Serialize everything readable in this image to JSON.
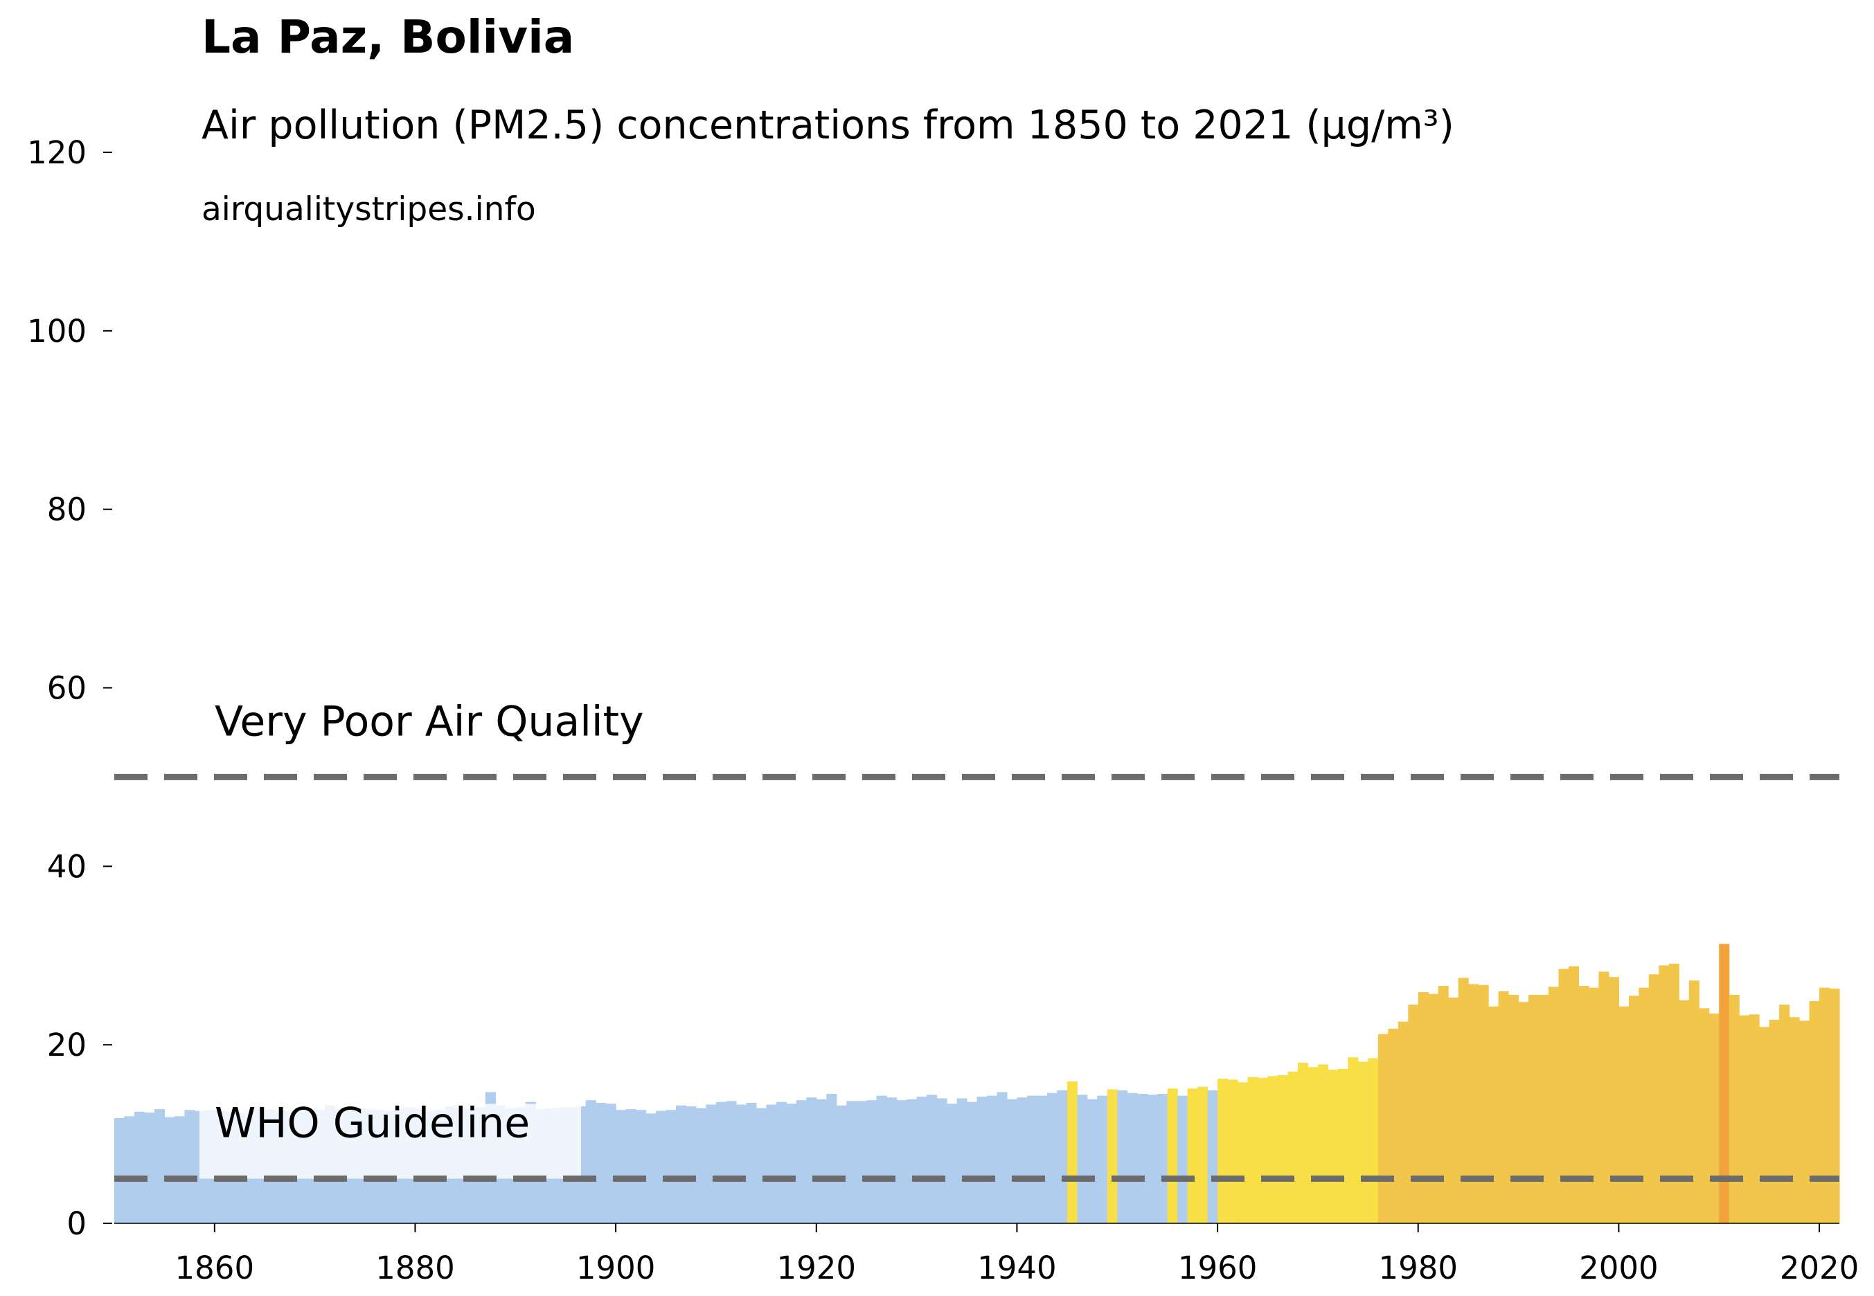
{
  "chart_data": {
    "type": "bar",
    "title": "La Paz, Bolivia",
    "subtitle": "Air pollution (PM2.5) concentrations from 1850 to 2021 (µg/m³)",
    "source": "airqualitystripes.info",
    "x": [
      1850,
      1851,
      1852,
      1853,
      1854,
      1855,
      1856,
      1857,
      1858,
      1859,
      1860,
      1861,
      1862,
      1863,
      1864,
      1865,
      1866,
      1867,
      1868,
      1869,
      1870,
      1871,
      1872,
      1873,
      1874,
      1875,
      1876,
      1877,
      1878,
      1879,
      1880,
      1881,
      1882,
      1883,
      1884,
      1885,
      1886,
      1887,
      1888,
      1889,
      1890,
      1891,
      1892,
      1893,
      1894,
      1895,
      1896,
      1897,
      1898,
      1899,
      1900,
      1901,
      1902,
      1903,
      1904,
      1905,
      1906,
      1907,
      1908,
      1909,
      1910,
      1911,
      1912,
      1913,
      1914,
      1915,
      1916,
      1917,
      1918,
      1919,
      1920,
      1921,
      1922,
      1923,
      1924,
      1925,
      1926,
      1927,
      1928,
      1929,
      1930,
      1931,
      1932,
      1933,
      1934,
      1935,
      1936,
      1937,
      1938,
      1939,
      1940,
      1941,
      1942,
      1943,
      1944,
      1945,
      1946,
      1947,
      1948,
      1949,
      1950,
      1951,
      1952,
      1953,
      1954,
      1955,
      1956,
      1957,
      1958,
      1959,
      1960,
      1961,
      1962,
      1963,
      1964,
      1965,
      1966,
      1967,
      1968,
      1969,
      1970,
      1971,
      1972,
      1973,
      1974,
      1975,
      1976,
      1977,
      1978,
      1979,
      1980,
      1981,
      1982,
      1983,
      1984,
      1985,
      1986,
      1987,
      1988,
      1989,
      1990,
      1991,
      1992,
      1993,
      1994,
      1995,
      1996,
      1997,
      1998,
      1999,
      2000,
      2001,
      2002,
      2003,
      2004,
      2005,
      2006,
      2007,
      2008,
      2009,
      2010,
      2011,
      2012,
      2013,
      2014,
      2015,
      2016,
      2017,
      2018,
      2019,
      2020,
      2021
    ],
    "values": [
      11.8,
      12.0,
      12.5,
      12.4,
      12.8,
      11.9,
      12.0,
      12.7,
      12.6,
      12.7,
      12.7,
      12.5,
      12.4,
      12.3,
      12.9,
      12.8,
      12.7,
      12.6,
      12.5,
      12.6,
      12.7,
      13.2,
      12.8,
      12.6,
      12.9,
      12.8,
      12.7,
      12.6,
      12.8,
      13.0,
      12.8,
      12.6,
      12.7,
      13.1,
      12.9,
      12.8,
      13.0,
      14.7,
      13.2,
      12.9,
      13.0,
      13.6,
      12.8,
      12.9,
      13.0,
      13.0,
      13.1,
      13.8,
      13.5,
      13.4,
      12.7,
      12.8,
      12.7,
      12.3,
      12.6,
      12.7,
      13.2,
      13.1,
      12.9,
      13.3,
      13.6,
      13.7,
      13.3,
      13.5,
      12.9,
      13.3,
      13.6,
      13.4,
      13.8,
      14.1,
      13.9,
      14.5,
      13.2,
      13.7,
      13.7,
      13.8,
      14.3,
      14.1,
      13.8,
      13.9,
      14.2,
      14.4,
      14.0,
      13.4,
      14.0,
      13.6,
      14.2,
      14.3,
      14.7,
      13.9,
      14.1,
      14.3,
      14.3,
      14.6,
      14.9,
      15.9,
      14.4,
      13.9,
      14.3,
      15.0,
      14.9,
      14.6,
      14.5,
      14.4,
      14.5,
      15.1,
      14.3,
      15.1,
      15.3,
      14.9,
      16.2,
      16.1,
      15.8,
      16.4,
      16.3,
      16.5,
      16.6,
      17.0,
      18.0,
      17.5,
      17.8,
      17.2,
      17.3,
      18.6,
      18.1,
      18.5,
      21.2,
      21.8,
      22.6,
      24.5,
      25.9,
      25.7,
      26.6,
      25.3,
      27.5,
      26.8,
      26.7,
      24.3,
      26.0,
      25.6,
      24.8,
      25.6,
      25.6,
      26.5,
      28.5,
      28.8,
      26.6,
      26.4,
      28.2,
      27.6,
      24.3,
      25.5,
      26.4,
      27.9,
      28.9,
      29.1,
      25.0,
      27.2,
      24.1,
      23.5,
      31.3,
      25.6,
      23.3,
      23.4,
      22.0,
      22.8,
      24.5,
      23.1,
      22.7,
      24.9,
      26.4,
      26.3
    ],
    "colors": [
      "#b0cdee",
      "#b0cdee",
      "#b0cdee",
      "#b0cdee",
      "#b0cdee",
      "#b0cdee",
      "#b0cdee",
      "#b0cdee",
      "#b0cdee",
      "#b0cdee",
      "#b0cdee",
      "#b0cdee",
      "#b0cdee",
      "#b0cdee",
      "#b0cdee",
      "#b0cdee",
      "#b0cdee",
      "#b0cdee",
      "#b0cdee",
      "#b0cdee",
      "#b0cdee",
      "#b0cdee",
      "#b0cdee",
      "#b0cdee",
      "#b0cdee",
      "#b0cdee",
      "#b0cdee",
      "#b0cdee",
      "#b0cdee",
      "#b0cdee",
      "#b0cdee",
      "#b0cdee",
      "#b0cdee",
      "#b0cdee",
      "#b0cdee",
      "#b0cdee",
      "#b0cdee",
      "#b0cdee",
      "#b0cdee",
      "#b0cdee",
      "#b0cdee",
      "#b0cdee",
      "#b0cdee",
      "#b0cdee",
      "#b0cdee",
      "#b0cdee",
      "#b0cdee",
      "#b0cdee",
      "#b0cdee",
      "#b0cdee",
      "#b0cdee",
      "#b0cdee",
      "#b0cdee",
      "#b0cdee",
      "#b0cdee",
      "#b0cdee",
      "#b0cdee",
      "#b0cdee",
      "#b0cdee",
      "#b0cdee",
      "#b0cdee",
      "#b0cdee",
      "#b0cdee",
      "#b0cdee",
      "#b0cdee",
      "#b0cdee",
      "#b0cdee",
      "#b0cdee",
      "#b0cdee",
      "#b0cdee",
      "#b0cdee",
      "#b0cdee",
      "#b0cdee",
      "#b0cdee",
      "#b0cdee",
      "#b0cdee",
      "#b0cdee",
      "#b0cdee",
      "#b0cdee",
      "#b0cdee",
      "#b0cdee",
      "#b0cdee",
      "#b0cdee",
      "#b0cdee",
      "#b0cdee",
      "#b0cdee",
      "#b0cdee",
      "#b0cdee",
      "#b0cdee",
      "#b0cdee",
      "#b0cdee",
      "#b0cdee",
      "#b0cdee",
      "#b0cdee",
      "#b0cdee",
      "#f7df45",
      "#b0cdee",
      "#b0cdee",
      "#b0cdee",
      "#f7df45",
      "#b0cdee",
      "#b0cdee",
      "#b0cdee",
      "#b0cdee",
      "#b0cdee",
      "#f7df45",
      "#b0cdee",
      "#f7df45",
      "#f7df45",
      "#b0cdee",
      "#f7df45",
      "#f7df45",
      "#f7df45",
      "#f7df45",
      "#f7df45",
      "#f7df45",
      "#f7df45",
      "#f7df45",
      "#f7df45",
      "#f7df45",
      "#f7df45",
      "#f7df45",
      "#f7df45",
      "#f7df45",
      "#f7df45",
      "#f7df45",
      "#f2c54b",
      "#f2c54b",
      "#f2c54b",
      "#f2c54b",
      "#f2c54b",
      "#f2c54b",
      "#f2c54b",
      "#f2c54b",
      "#f2c54b",
      "#f2c54b",
      "#f2c54b",
      "#f2c54b",
      "#f2c54b",
      "#f2c54b",
      "#f2c54b",
      "#f2c54b",
      "#f2c54b",
      "#f2c54b",
      "#f2c54b",
      "#f2c54b",
      "#f2c54b",
      "#f2c54b",
      "#f2c54b",
      "#f2c54b",
      "#f2c54b",
      "#f2c54b",
      "#f2c54b",
      "#f2c54b",
      "#f2c54b",
      "#f2c54b",
      "#f2c54b",
      "#f2c54b",
      "#f2c54b",
      "#f2c54b",
      "#f2a33c",
      "#f2c54b",
      "#f2c54b",
      "#f2c54b",
      "#f2c54b",
      "#f2c54b",
      "#f2c54b",
      "#f2c54b",
      "#f2c54b",
      "#f2c54b",
      "#f2c54b",
      "#f2c54b"
    ],
    "xlim": [
      1850,
      2022
    ],
    "xticks": [
      1860,
      1880,
      1900,
      1920,
      1940,
      1960,
      1980,
      2000,
      2020
    ],
    "ylim": [
      0,
      120
    ],
    "yticks": [
      0,
      20,
      40,
      60,
      80,
      100,
      120
    ],
    "hlines": [
      {
        "value": 50,
        "label": "Very Poor Air Quality"
      },
      {
        "value": 5,
        "label": "WHO Guideline"
      }
    ],
    "hline_color": "#6b6b6b"
  }
}
